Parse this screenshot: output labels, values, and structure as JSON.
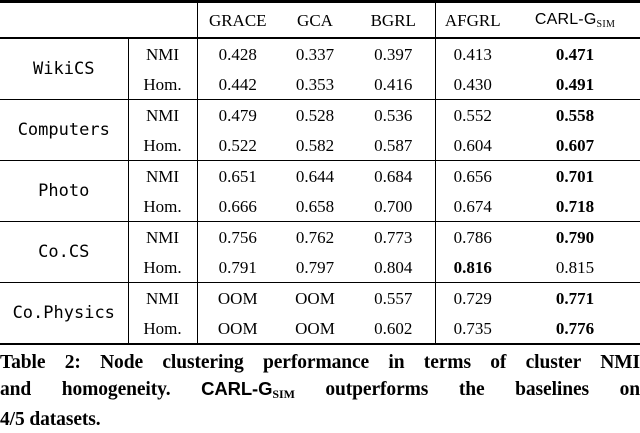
{
  "table": {
    "baseline_columns": [
      "GRACE",
      "GCA",
      "BGRL",
      "AFGRL"
    ],
    "carlg_label": "CARL-G",
    "carlg_sub": "SIM",
    "metrics": [
      "NMI",
      "Hom."
    ],
    "groups": [
      {
        "dataset": "WikiCS",
        "rows": [
          {
            "metric": "NMI",
            "values": [
              "0.428",
              "0.337",
              "0.397",
              "0.413",
              "0.471"
            ],
            "bold": [
              false,
              false,
              false,
              false,
              true
            ]
          },
          {
            "metric": "Hom.",
            "values": [
              "0.442",
              "0.353",
              "0.416",
              "0.430",
              "0.491"
            ],
            "bold": [
              false,
              false,
              false,
              false,
              true
            ]
          }
        ]
      },
      {
        "dataset": "Computers",
        "rows": [
          {
            "metric": "NMI",
            "values": [
              "0.479",
              "0.528",
              "0.536",
              "0.552",
              "0.558"
            ],
            "bold": [
              false,
              false,
              false,
              false,
              true
            ]
          },
          {
            "metric": "Hom.",
            "values": [
              "0.522",
              "0.582",
              "0.587",
              "0.604",
              "0.607"
            ],
            "bold": [
              false,
              false,
              false,
              false,
              true
            ]
          }
        ]
      },
      {
        "dataset": "Photo",
        "rows": [
          {
            "metric": "NMI",
            "values": [
              "0.651",
              "0.644",
              "0.684",
              "0.656",
              "0.701"
            ],
            "bold": [
              false,
              false,
              false,
              false,
              true
            ]
          },
          {
            "metric": "Hom.",
            "values": [
              "0.666",
              "0.658",
              "0.700",
              "0.674",
              "0.718"
            ],
            "bold": [
              false,
              false,
              false,
              false,
              true
            ]
          }
        ]
      },
      {
        "dataset": "Co.CS",
        "rows": [
          {
            "metric": "NMI",
            "values": [
              "0.756",
              "0.762",
              "0.773",
              "0.786",
              "0.790"
            ],
            "bold": [
              false,
              false,
              false,
              false,
              true
            ]
          },
          {
            "metric": "Hom.",
            "values": [
              "0.791",
              "0.797",
              "0.804",
              "0.816",
              "0.815"
            ],
            "bold": [
              false,
              false,
              false,
              true,
              false
            ]
          }
        ]
      },
      {
        "dataset": "Co.Physics",
        "rows": [
          {
            "metric": "NMI",
            "values": [
              "OOM",
              "OOM",
              "0.557",
              "0.729",
              "0.771"
            ],
            "bold": [
              false,
              false,
              false,
              false,
              true
            ]
          },
          {
            "metric": "Hom.",
            "values": [
              "OOM",
              "OOM",
              "0.602",
              "0.735",
              "0.776"
            ],
            "bold": [
              false,
              false,
              false,
              false,
              true
            ]
          }
        ]
      }
    ]
  },
  "caption": {
    "line1": "Table 2: Node clustering performance in terms of cluster NMI",
    "line2_before": "and homogeneity. ",
    "line2_carlg": "CARL-G",
    "line2_carlg_sub": "SIM",
    "line2_after": " outperforms the baselines on",
    "line3": "4/5 datasets."
  }
}
